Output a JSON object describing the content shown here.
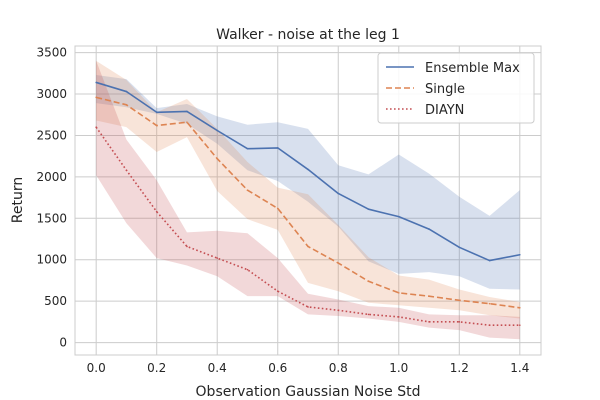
{
  "chart_data": {
    "type": "line",
    "title": "Walker - noise at the leg 1",
    "xlabel": "Observation Gaussian Noise Std",
    "ylabel": "Return",
    "xlim": [
      -0.07,
      1.47
    ],
    "ylim": [
      -150,
      3580
    ],
    "xticks": [
      "0.0",
      "0.2",
      "0.4",
      "0.6",
      "0.8",
      "1.0",
      "1.2",
      "1.4"
    ],
    "yticks": [
      "0",
      "500",
      "1000",
      "1500",
      "2000",
      "2500",
      "3000",
      "3500"
    ],
    "grid": true,
    "legend_position": "top-right",
    "x": [
      0.0,
      0.1,
      0.2,
      0.3,
      0.4,
      0.5,
      0.6,
      0.7,
      0.8,
      0.9,
      1.0,
      1.1,
      1.2,
      1.3,
      1.4
    ],
    "series": [
      {
        "name": "Ensemble Max",
        "color": "#4c72b0",
        "style": "solid",
        "values": [
          3140,
          3030,
          2780,
          2790,
          2560,
          2340,
          2350,
          2090,
          1800,
          1610,
          1520,
          1370,
          1150,
          990,
          1060
        ],
        "lower": [
          2890,
          2840,
          2760,
          2640,
          2400,
          2080,
          1950,
          1700,
          1400,
          980,
          830,
          850,
          800,
          650,
          640
        ],
        "upper": [
          3230,
          3180,
          2830,
          2880,
          2730,
          2630,
          2660,
          2580,
          2140,
          2030,
          2270,
          2040,
          1760,
          1530,
          1840
        ]
      },
      {
        "name": "Single",
        "color": "#dd8452",
        "style": "dashed",
        "values": [
          2960,
          2870,
          2620,
          2660,
          2220,
          1840,
          1620,
          1160,
          960,
          740,
          600,
          560,
          510,
          470,
          420
        ],
        "lower": [
          2680,
          2600,
          2300,
          2480,
          1830,
          1490,
          1360,
          720,
          620,
          480,
          450,
          420,
          390,
          330,
          290
        ],
        "upper": [
          3400,
          3170,
          2780,
          2940,
          2580,
          2180,
          1870,
          1790,
          1420,
          1030,
          810,
          760,
          640,
          550,
          490
        ]
      },
      {
        "name": "DIAYN",
        "color": "#c44e52",
        "style": "dotted",
        "values": [
          2600,
          2080,
          1580,
          1160,
          1020,
          880,
          620,
          430,
          390,
          340,
          310,
          250,
          250,
          210,
          210
        ],
        "lower": [
          2020,
          1440,
          1020,
          930,
          800,
          560,
          560,
          340,
          320,
          290,
          250,
          180,
          150,
          60,
          40
        ],
        "upper": [
          3400,
          2450,
          1960,
          1330,
          1350,
          1320,
          1020,
          590,
          520,
          440,
          420,
          340,
          330,
          330,
          310
        ]
      }
    ]
  }
}
